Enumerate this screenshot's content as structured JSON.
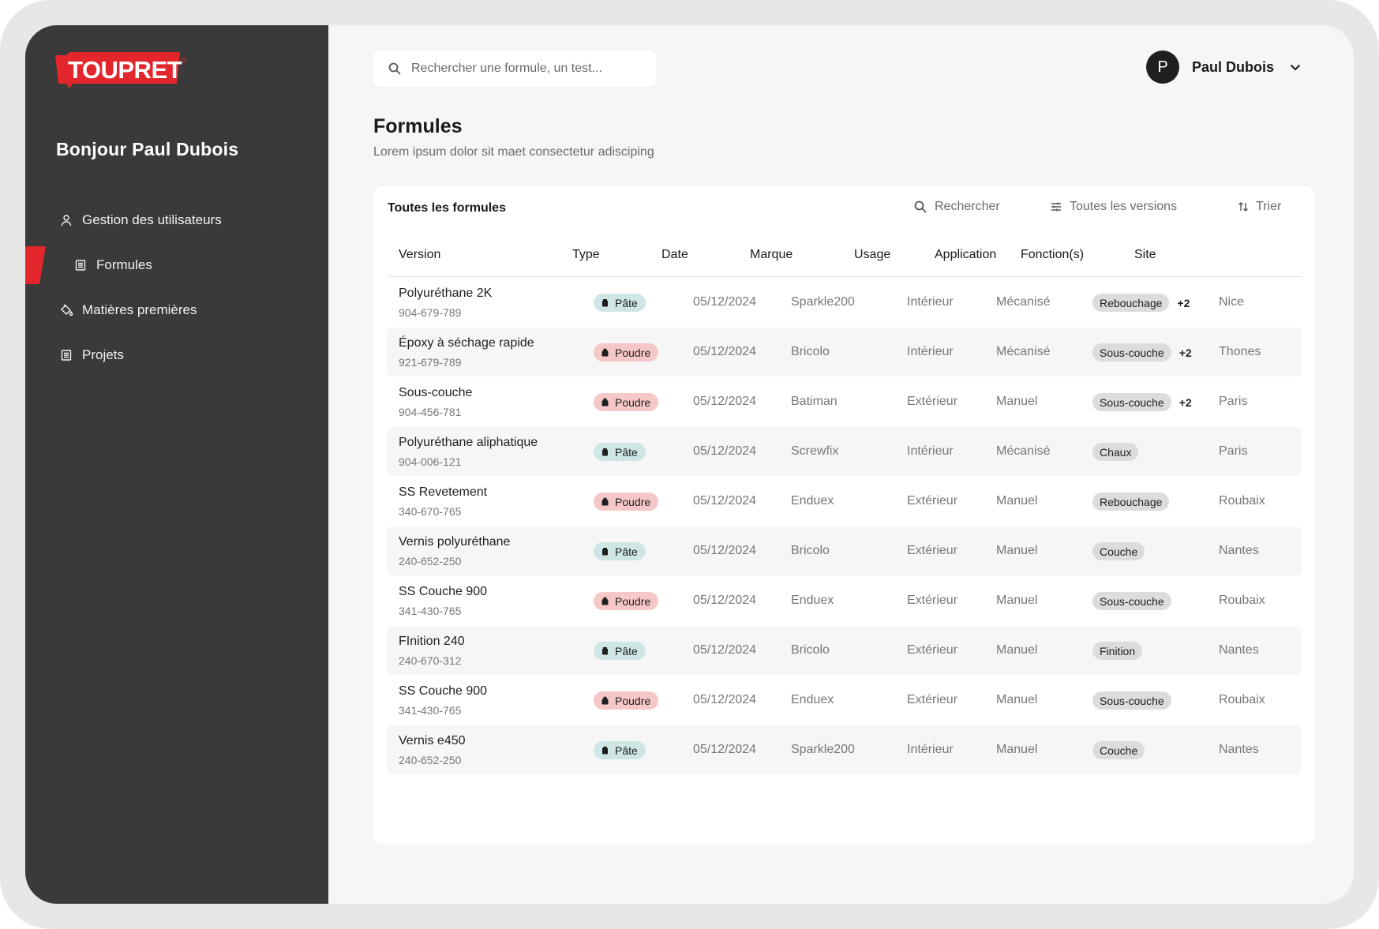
{
  "brand": {
    "logo_text": "TOUPRET",
    "accent": "#e3262b",
    "sidebar_bg": "#3a3a3a"
  },
  "sidebar": {
    "greeting": "Bonjour Paul Dubois",
    "items": [
      {
        "label": "Gestion des utilisateurs",
        "icon": "user-icon"
      },
      {
        "label": "Formules",
        "icon": "document-icon",
        "active": true
      },
      {
        "label": "Matières premières",
        "icon": "paint-bucket-icon"
      },
      {
        "label": "Projets",
        "icon": "document-icon"
      }
    ]
  },
  "header": {
    "search_placeholder": "Rechercher une formule, un test...",
    "user": {
      "initial": "P",
      "name": "Paul Dubois"
    }
  },
  "page": {
    "title": "Formules",
    "subtitle": "Lorem ipsum dolor sit maet consectetur adisciping"
  },
  "table": {
    "title": "Toutes les formules",
    "tools": {
      "search": "Rechercher",
      "versions": "Toutes les versions",
      "sort": "Trier"
    },
    "columns": [
      "Version",
      "Type",
      "Date",
      "Marque",
      "Usage",
      "Application",
      "Fonction(s)",
      "Site"
    ],
    "rows": [
      {
        "name": "Polyuréthane 2K",
        "code": "904-679-789",
        "type": "Pâte",
        "date": "05/12/2024",
        "marque": "Sparkle200",
        "usage": "Intérieur",
        "application": "Mécanisé",
        "fonction": "Rebouchage",
        "more": "+2",
        "site": "Nice"
      },
      {
        "name": "Époxy à séchage rapide",
        "code": "921-679-789",
        "type": "Poudre",
        "date": "05/12/2024",
        "marque": "Bricolo",
        "usage": "Intérieur",
        "application": "Mécanisé",
        "fonction": "Sous-couche",
        "more": "+2",
        "site": "Thones"
      },
      {
        "name": "Sous-couche",
        "code": "904-456-781",
        "type": "Poudre",
        "date": "05/12/2024",
        "marque": "Batiman",
        "usage": "Extérieur",
        "application": "Manuel",
        "fonction": "Sous-couche",
        "more": "+2",
        "site": "Paris"
      },
      {
        "name": "Polyuréthane aliphatique",
        "code": "904-006-121",
        "type": "Pâte",
        "date": "05/12/2024",
        "marque": "Screwfix",
        "usage": "Intérieur",
        "application": "Mécanisé",
        "fonction": "Chaux",
        "more": "",
        "site": "Paris"
      },
      {
        "name": "SS Revetement",
        "code": "340-670-765",
        "type": "Poudre",
        "date": "05/12/2024",
        "marque": "Enduex",
        "usage": "Extérieur",
        "application": "Manuel",
        "fonction": "Rebouchage",
        "more": "",
        "site": "Roubaix"
      },
      {
        "name": "Vernis polyuréthane",
        "code": "240-652-250",
        "type": "Pâte",
        "date": "05/12/2024",
        "marque": "Bricolo",
        "usage": "Extérieur",
        "application": "Manuel",
        "fonction": "Couche",
        "more": "",
        "site": "Nantes"
      },
      {
        "name": "SS Couche 900",
        "code": "341-430-765",
        "type": "Poudre",
        "date": "05/12/2024",
        "marque": "Enduex",
        "usage": "Extérieur",
        "application": "Manuel",
        "fonction": "Sous-couche",
        "more": "",
        "site": "Roubaix"
      },
      {
        "name": "FInition 240",
        "code": "240-670-312",
        "type": "Pâte",
        "date": "05/12/2024",
        "marque": "Bricolo",
        "usage": "Extérieur",
        "application": "Manuel",
        "fonction": "Finition",
        "more": "",
        "site": "Nantes"
      },
      {
        "name": "SS Couche 900",
        "code": "341-430-765",
        "type": "Poudre",
        "date": "05/12/2024",
        "marque": "Enduex",
        "usage": "Extérieur",
        "application": "Manuel",
        "fonction": "Sous-couche",
        "more": "",
        "site": "Roubaix"
      },
      {
        "name": "Vernis e450",
        "code": "240-652-250",
        "type": "Pâte",
        "date": "05/12/2024",
        "marque": "Sparkle200",
        "usage": "Intérieur",
        "application": "Manuel",
        "fonction": "Couche",
        "more": "",
        "site": "Nantes"
      }
    ]
  },
  "colors": {
    "pate_badge": "#cfe6e7",
    "poudre_badge": "#f6c7c7",
    "tag": "#dcdcdc"
  }
}
